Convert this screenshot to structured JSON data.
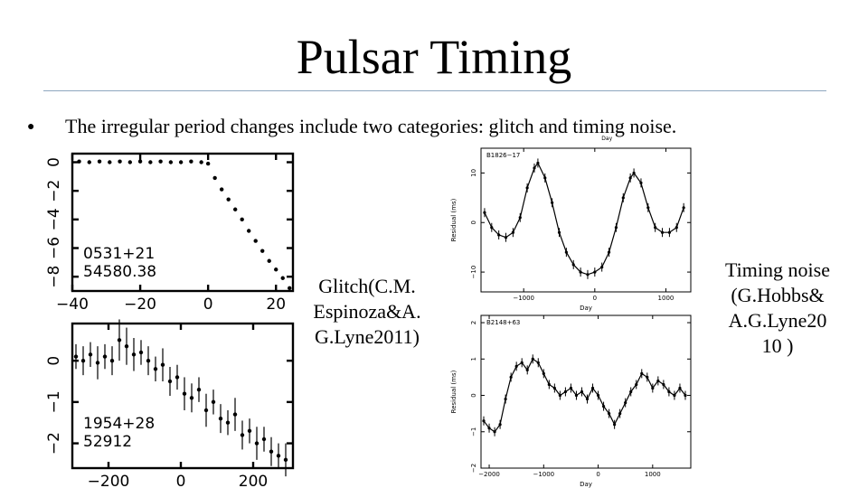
{
  "slide": {
    "title": "Pulsar Timing",
    "bullet": "The irregular period changes include two categories: glitch and timing noise.",
    "bullet_marker": "●"
  },
  "glitch_caption": [
    "Glitch(C.M.",
    "Espinoza&A.",
    "G.Lyne2011)"
  ],
  "noise_caption": [
    "Timing noise",
    "(G.Hobbs&",
    "A.G.Lyne20",
    "10 )"
  ],
  "chart_data": [
    {
      "type": "scatter",
      "id": "glitch-top",
      "labels": [
        "0531+21",
        "54580.38"
      ],
      "xlim": [
        -40,
        25
      ],
      "ylim": [
        -9,
        0.6
      ],
      "xticks": [
        -40,
        -20,
        0,
        20
      ],
      "xticklabels": [
        "−40",
        "−20",
        "0",
        "20"
      ],
      "yticks": [
        0,
        -2,
        -4,
        -6,
        -8
      ],
      "yticklabels": [
        "0",
        "−2",
        "−4",
        "−6",
        "−8"
      ],
      "x": [
        -38,
        -35,
        -32,
        -29,
        -26,
        -23,
        -20,
        -17,
        -14,
        -11,
        -8,
        -5,
        -2,
        0,
        2,
        4,
        6,
        8,
        10,
        12,
        14,
        16,
        18,
        20,
        22,
        24
      ],
      "y": [
        0.05,
        0.0,
        0.05,
        0.0,
        0.05,
        0.0,
        0.05,
        0.0,
        0.05,
        0.0,
        0.0,
        0.05,
        0.0,
        -0.1,
        -1.1,
        -1.9,
        -2.6,
        -3.3,
        -4.0,
        -4.8,
        -5.5,
        -6.2,
        -6.9,
        -7.5,
        -8.1,
        -8.8
      ]
    },
    {
      "type": "scatter",
      "id": "glitch-bottom",
      "labels": [
        "1954+28",
        "52912"
      ],
      "xlim": [
        -300,
        310
      ],
      "ylim": [
        -2.6,
        0.9
      ],
      "xticks": [
        -200,
        0,
        200
      ],
      "xticklabels": [
        "−200",
        "0",
        "200"
      ],
      "yticks": [
        0,
        -1,
        -2
      ],
      "yticklabels": [
        "0",
        "−1",
        "−2"
      ],
      "x": [
        -290,
        -270,
        -250,
        -230,
        -210,
        -190,
        -170,
        -150,
        -130,
        -110,
        -90,
        -70,
        -50,
        -30,
        -10,
        10,
        30,
        50,
        70,
        90,
        110,
        130,
        150,
        170,
        190,
        210,
        230,
        250,
        270,
        290
      ],
      "y": [
        0.1,
        0.0,
        0.15,
        -0.05,
        0.1,
        0.0,
        0.5,
        0.35,
        0.15,
        0.2,
        0.0,
        -0.2,
        -0.1,
        -0.5,
        -0.4,
        -0.8,
        -0.9,
        -0.7,
        -1.2,
        -1.0,
        -1.4,
        -1.5,
        -1.3,
        -1.8,
        -1.7,
        -2.0,
        -1.9,
        -2.2,
        -2.3,
        -2.4
      ],
      "errors": [
        0.3,
        0.35,
        0.3,
        0.4,
        0.3,
        0.35,
        0.5,
        0.45,
        0.4,
        0.3,
        0.35,
        0.3,
        0.4,
        0.35,
        0.3,
        0.4,
        0.35,
        0.3,
        0.4,
        0.3,
        0.35,
        0.3,
        0.4,
        0.35,
        0.3,
        0.4,
        0.3,
        0.35,
        0.3,
        0.4
      ]
    },
    {
      "type": "scatter",
      "id": "noise-top",
      "labels": [
        "B1826−17"
      ],
      "xlabel_top": "Day",
      "xlabel": "Day",
      "ylabel": "Residual (ms)",
      "xlim": [
        -1600,
        1350
      ],
      "ylim": [
        -14,
        15
      ],
      "xticks": [
        -1000,
        0,
        1000
      ],
      "xticklabels": [
        "−1000",
        "0",
        "1000"
      ],
      "yticks": [
        10,
        0,
        -10
      ],
      "yticklabels": [
        "10",
        "0",
        "−10"
      ],
      "x": [
        -1550,
        -1450,
        -1350,
        -1250,
        -1150,
        -1050,
        -950,
        -850,
        -800,
        -700,
        -600,
        -500,
        -400,
        -300,
        -200,
        -100,
        0,
        100,
        200,
        300,
        400,
        500,
        550,
        650,
        750,
        850,
        950,
        1050,
        1150,
        1250
      ],
      "y": [
        2,
        -1,
        -2.5,
        -3,
        -2,
        1,
        7,
        11,
        12,
        9,
        4,
        -2,
        -6,
        -8.5,
        -10,
        -10.5,
        -10,
        -9,
        -6,
        -1,
        5,
        9,
        10,
        8,
        3,
        -1,
        -2,
        -2,
        -1,
        3
      ]
    },
    {
      "type": "scatter",
      "id": "noise-bottom",
      "labels": [
        "B2148+63"
      ],
      "xlabel": "Day",
      "ylabel": "Residual (ms)",
      "xlim": [
        -2150,
        1700
      ],
      "ylim": [
        -2,
        2.2
      ],
      "xticks": [
        -2000,
        -1000,
        0,
        1000
      ],
      "xticklabels": [
        "−2000",
        "−1000",
        "0",
        "1000"
      ],
      "yticks": [
        2,
        1,
        0,
        -1,
        -2
      ],
      "yticklabels": [
        "2",
        "1",
        "0",
        "−1",
        "−2"
      ],
      "x": [
        -2100,
        -2000,
        -1900,
        -1800,
        -1700,
        -1600,
        -1500,
        -1400,
        -1300,
        -1200,
        -1100,
        -1000,
        -900,
        -800,
        -700,
        -600,
        -500,
        -400,
        -300,
        -200,
        -100,
        0,
        100,
        200,
        300,
        400,
        500,
        600,
        700,
        800,
        900,
        1000,
        1100,
        1200,
        1300,
        1400,
        1500,
        1600
      ],
      "y": [
        -0.7,
        -0.9,
        -1.0,
        -0.8,
        -0.1,
        0.5,
        0.8,
        0.9,
        0.7,
        1.0,
        0.9,
        0.6,
        0.3,
        0.2,
        0.0,
        0.1,
        0.2,
        0.0,
        0.1,
        -0.1,
        0.2,
        0.0,
        -0.3,
        -0.5,
        -0.8,
        -0.5,
        -0.2,
        0.1,
        0.3,
        0.6,
        0.5,
        0.2,
        0.4,
        0.3,
        0.1,
        0.0,
        0.2,
        0.0
      ]
    }
  ]
}
